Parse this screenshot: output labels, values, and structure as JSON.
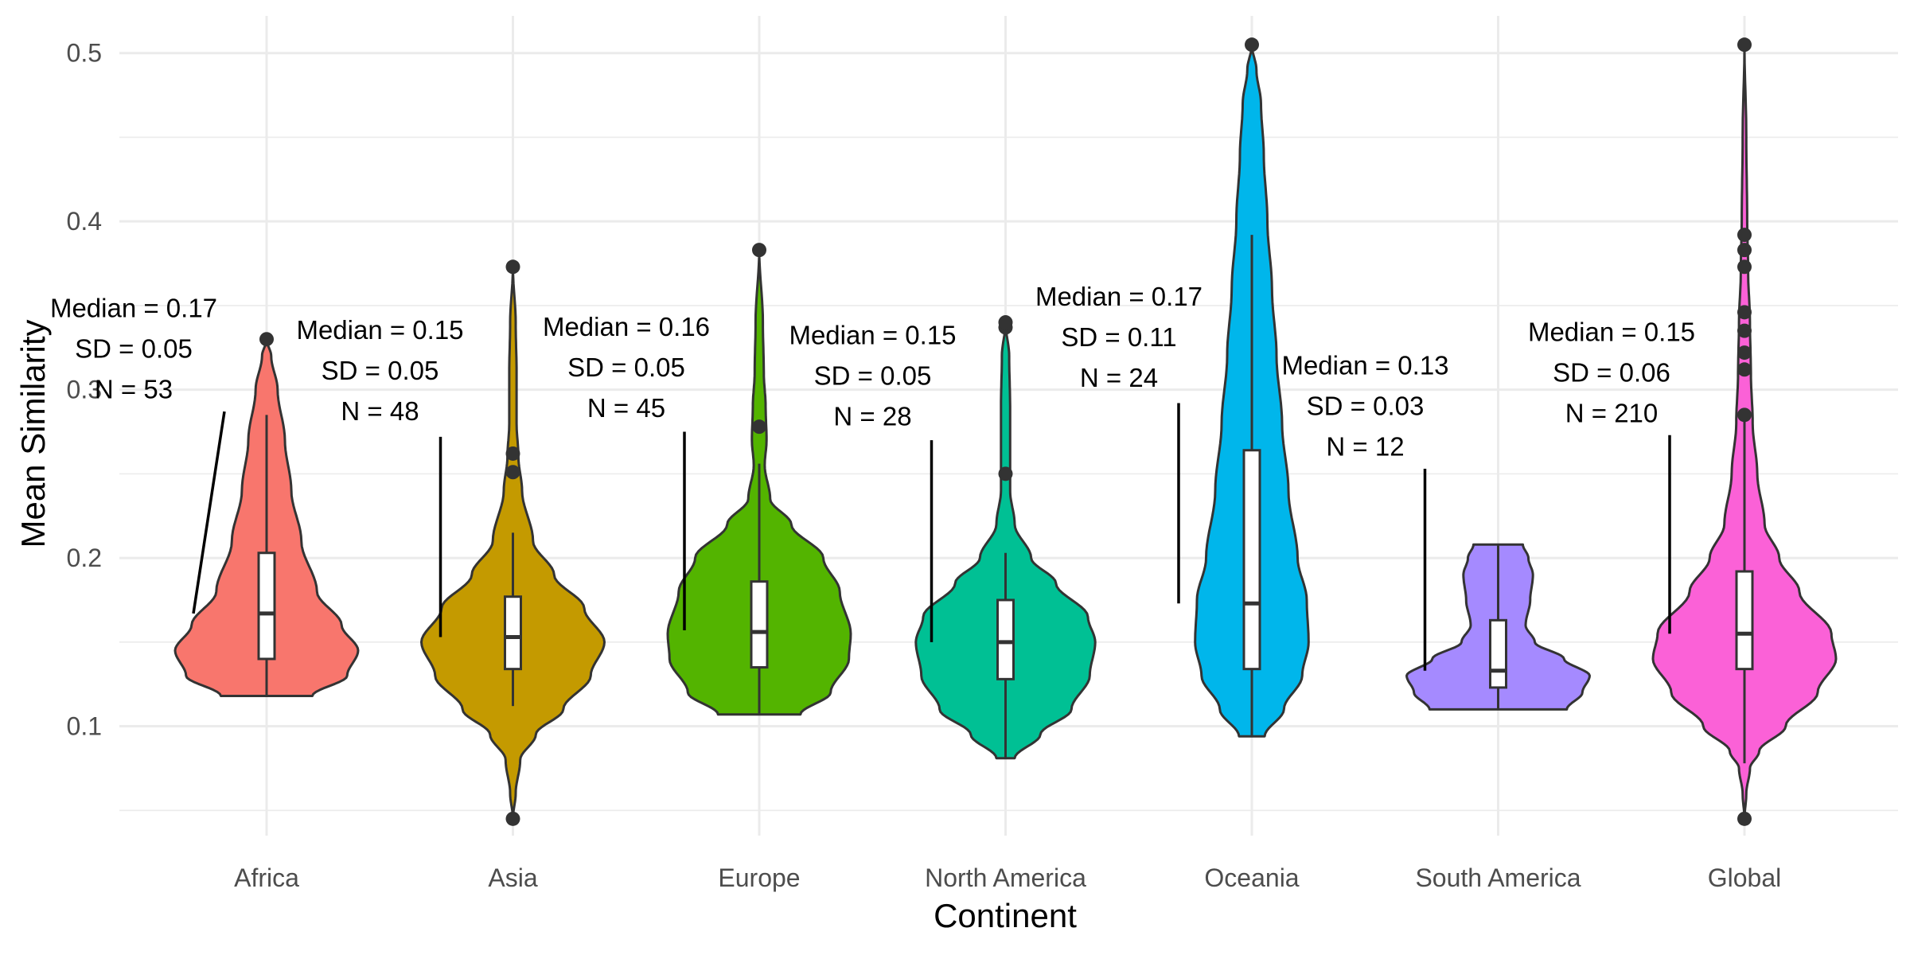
{
  "chart_data": {
    "type": "violin",
    "xlabel": "Continent",
    "ylabel": "Mean Similarity",
    "ylim": [
      0.035,
      0.515
    ],
    "y_ticks": [
      0.1,
      0.2,
      0.3,
      0.4,
      0.5
    ],
    "y_tick_labels": [
      "0.1",
      "0.2",
      "0.3",
      "0.4",
      "0.5"
    ],
    "grid": true,
    "legend": "none",
    "categories": [
      {
        "name": "Africa",
        "color": "#F8766D",
        "min": 0.118,
        "max": 0.33,
        "q1": 0.14,
        "median": 0.167,
        "q3": 0.203,
        "whisker_low": 0.118,
        "whisker_high": 0.285,
        "outliers": [
          0.33
        ],
        "density": [
          [
            0.118,
            0.5
          ],
          [
            0.13,
            0.88
          ],
          [
            0.145,
            1.0
          ],
          [
            0.16,
            0.82
          ],
          [
            0.18,
            0.55
          ],
          [
            0.21,
            0.38
          ],
          [
            0.24,
            0.27
          ],
          [
            0.27,
            0.2
          ],
          [
            0.3,
            0.12
          ],
          [
            0.32,
            0.05
          ],
          [
            0.33,
            0.0
          ]
        ],
        "annotation": [
          "Median = 0.17",
          "SD = 0.05",
          "N = 53"
        ]
      },
      {
        "name": "Asia",
        "color": "#C49A00",
        "min": 0.045,
        "max": 0.373,
        "q1": 0.134,
        "median": 0.153,
        "q3": 0.177,
        "whisker_low": 0.112,
        "whisker_high": 0.215,
        "outliers": [
          0.045,
          0.251,
          0.262,
          0.373
        ],
        "density": [
          [
            0.045,
            0.0
          ],
          [
            0.06,
            0.03
          ],
          [
            0.08,
            0.08
          ],
          [
            0.095,
            0.25
          ],
          [
            0.11,
            0.55
          ],
          [
            0.13,
            0.85
          ],
          [
            0.15,
            1.0
          ],
          [
            0.17,
            0.78
          ],
          [
            0.19,
            0.45
          ],
          [
            0.21,
            0.22
          ],
          [
            0.24,
            0.1
          ],
          [
            0.26,
            0.06
          ],
          [
            0.28,
            0.04
          ],
          [
            0.31,
            0.04
          ],
          [
            0.34,
            0.03
          ],
          [
            0.373,
            0.0
          ]
        ],
        "annotation": [
          "Median = 0.15",
          "SD = 0.05",
          "N = 48"
        ]
      },
      {
        "name": "Europe",
        "color": "#53B400",
        "min": 0.107,
        "max": 0.383,
        "q1": 0.135,
        "median": 0.156,
        "q3": 0.186,
        "whisker_low": 0.107,
        "whisker_high": 0.256,
        "outliers": [
          0.278,
          0.383
        ],
        "density": [
          [
            0.107,
            0.45
          ],
          [
            0.12,
            0.78
          ],
          [
            0.14,
            0.98
          ],
          [
            0.155,
            1.0
          ],
          [
            0.18,
            0.88
          ],
          [
            0.2,
            0.7
          ],
          [
            0.22,
            0.35
          ],
          [
            0.235,
            0.12
          ],
          [
            0.255,
            0.06
          ],
          [
            0.27,
            0.08
          ],
          [
            0.29,
            0.07
          ],
          [
            0.31,
            0.05
          ],
          [
            0.34,
            0.04
          ],
          [
            0.383,
            0.0
          ]
        ],
        "annotation": [
          "Median = 0.16",
          "SD = 0.05",
          "N = 45"
        ]
      },
      {
        "name": "North America",
        "color": "#00C094",
        "min": 0.081,
        "max": 0.34,
        "q1": 0.128,
        "median": 0.15,
        "q3": 0.175,
        "whisker_low": 0.081,
        "whisker_high": 0.203,
        "outliers": [
          0.25,
          0.337,
          0.34
        ],
        "density": [
          [
            0.081,
            0.1
          ],
          [
            0.095,
            0.38
          ],
          [
            0.11,
            0.72
          ],
          [
            0.13,
            0.92
          ],
          [
            0.15,
            0.98
          ],
          [
            0.165,
            0.9
          ],
          [
            0.185,
            0.55
          ],
          [
            0.2,
            0.28
          ],
          [
            0.22,
            0.1
          ],
          [
            0.24,
            0.05
          ],
          [
            0.26,
            0.05
          ],
          [
            0.29,
            0.05
          ],
          [
            0.32,
            0.04
          ],
          [
            0.34,
            0.0
          ]
        ],
        "annotation": [
          "Median = 0.15",
          "SD = 0.05",
          "N = 28"
        ]
      },
      {
        "name": "Oceania",
        "color": "#00B6EB",
        "min": 0.094,
        "max": 0.505,
        "q1": 0.134,
        "median": 0.173,
        "q3": 0.264,
        "whisker_low": 0.094,
        "whisker_high": 0.392,
        "outliers": [
          0.505
        ],
        "density": [
          [
            0.094,
            0.14
          ],
          [
            0.11,
            0.35
          ],
          [
            0.13,
            0.55
          ],
          [
            0.15,
            0.62
          ],
          [
            0.175,
            0.6
          ],
          [
            0.2,
            0.5
          ],
          [
            0.24,
            0.4
          ],
          [
            0.28,
            0.33
          ],
          [
            0.32,
            0.27
          ],
          [
            0.36,
            0.22
          ],
          [
            0.4,
            0.17
          ],
          [
            0.44,
            0.13
          ],
          [
            0.47,
            0.1
          ],
          [
            0.49,
            0.05
          ],
          [
            0.505,
            0.0
          ]
        ],
        "annotation": [
          "Median = 0.17",
          "SD = 0.11",
          "N = 24"
        ]
      },
      {
        "name": "South America",
        "color": "#A58AFF",
        "min": 0.11,
        "max": 0.208,
        "q1": 0.123,
        "median": 0.133,
        "q3": 0.163,
        "whisker_low": 0.11,
        "whisker_high": 0.208,
        "outliers": [],
        "density": [
          [
            0.11,
            0.75
          ],
          [
            0.12,
            0.92
          ],
          [
            0.13,
            1.0
          ],
          [
            0.14,
            0.72
          ],
          [
            0.15,
            0.4
          ],
          [
            0.16,
            0.3
          ],
          [
            0.175,
            0.35
          ],
          [
            0.19,
            0.38
          ],
          [
            0.2,
            0.33
          ],
          [
            0.208,
            0.27
          ]
        ],
        "annotation": [
          "Median = 0.13",
          "SD = 0.03",
          "N = 12"
        ]
      },
      {
        "name": "Global",
        "color": "#FB61D7",
        "min": 0.045,
        "max": 0.505,
        "q1": 0.134,
        "median": 0.155,
        "q3": 0.192,
        "whisker_low": 0.078,
        "whisker_high": 0.283,
        "outliers": [
          0.045,
          0.285,
          0.312,
          0.322,
          0.335,
          0.346,
          0.373,
          0.383,
          0.392,
          0.505
        ],
        "density": [
          [
            0.045,
            0.0
          ],
          [
            0.06,
            0.02
          ],
          [
            0.075,
            0.06
          ],
          [
            0.085,
            0.16
          ],
          [
            0.1,
            0.45
          ],
          [
            0.12,
            0.8
          ],
          [
            0.14,
            1.0
          ],
          [
            0.155,
            0.95
          ],
          [
            0.18,
            0.6
          ],
          [
            0.2,
            0.38
          ],
          [
            0.22,
            0.22
          ],
          [
            0.25,
            0.14
          ],
          [
            0.28,
            0.09
          ],
          [
            0.31,
            0.07
          ],
          [
            0.34,
            0.06
          ],
          [
            0.37,
            0.04
          ],
          [
            0.4,
            0.03
          ],
          [
            0.45,
            0.02
          ],
          [
            0.505,
            0.0
          ]
        ],
        "annotation": [
          "Median = 0.15",
          "SD = 0.06",
          "N = 210"
        ]
      }
    ]
  }
}
